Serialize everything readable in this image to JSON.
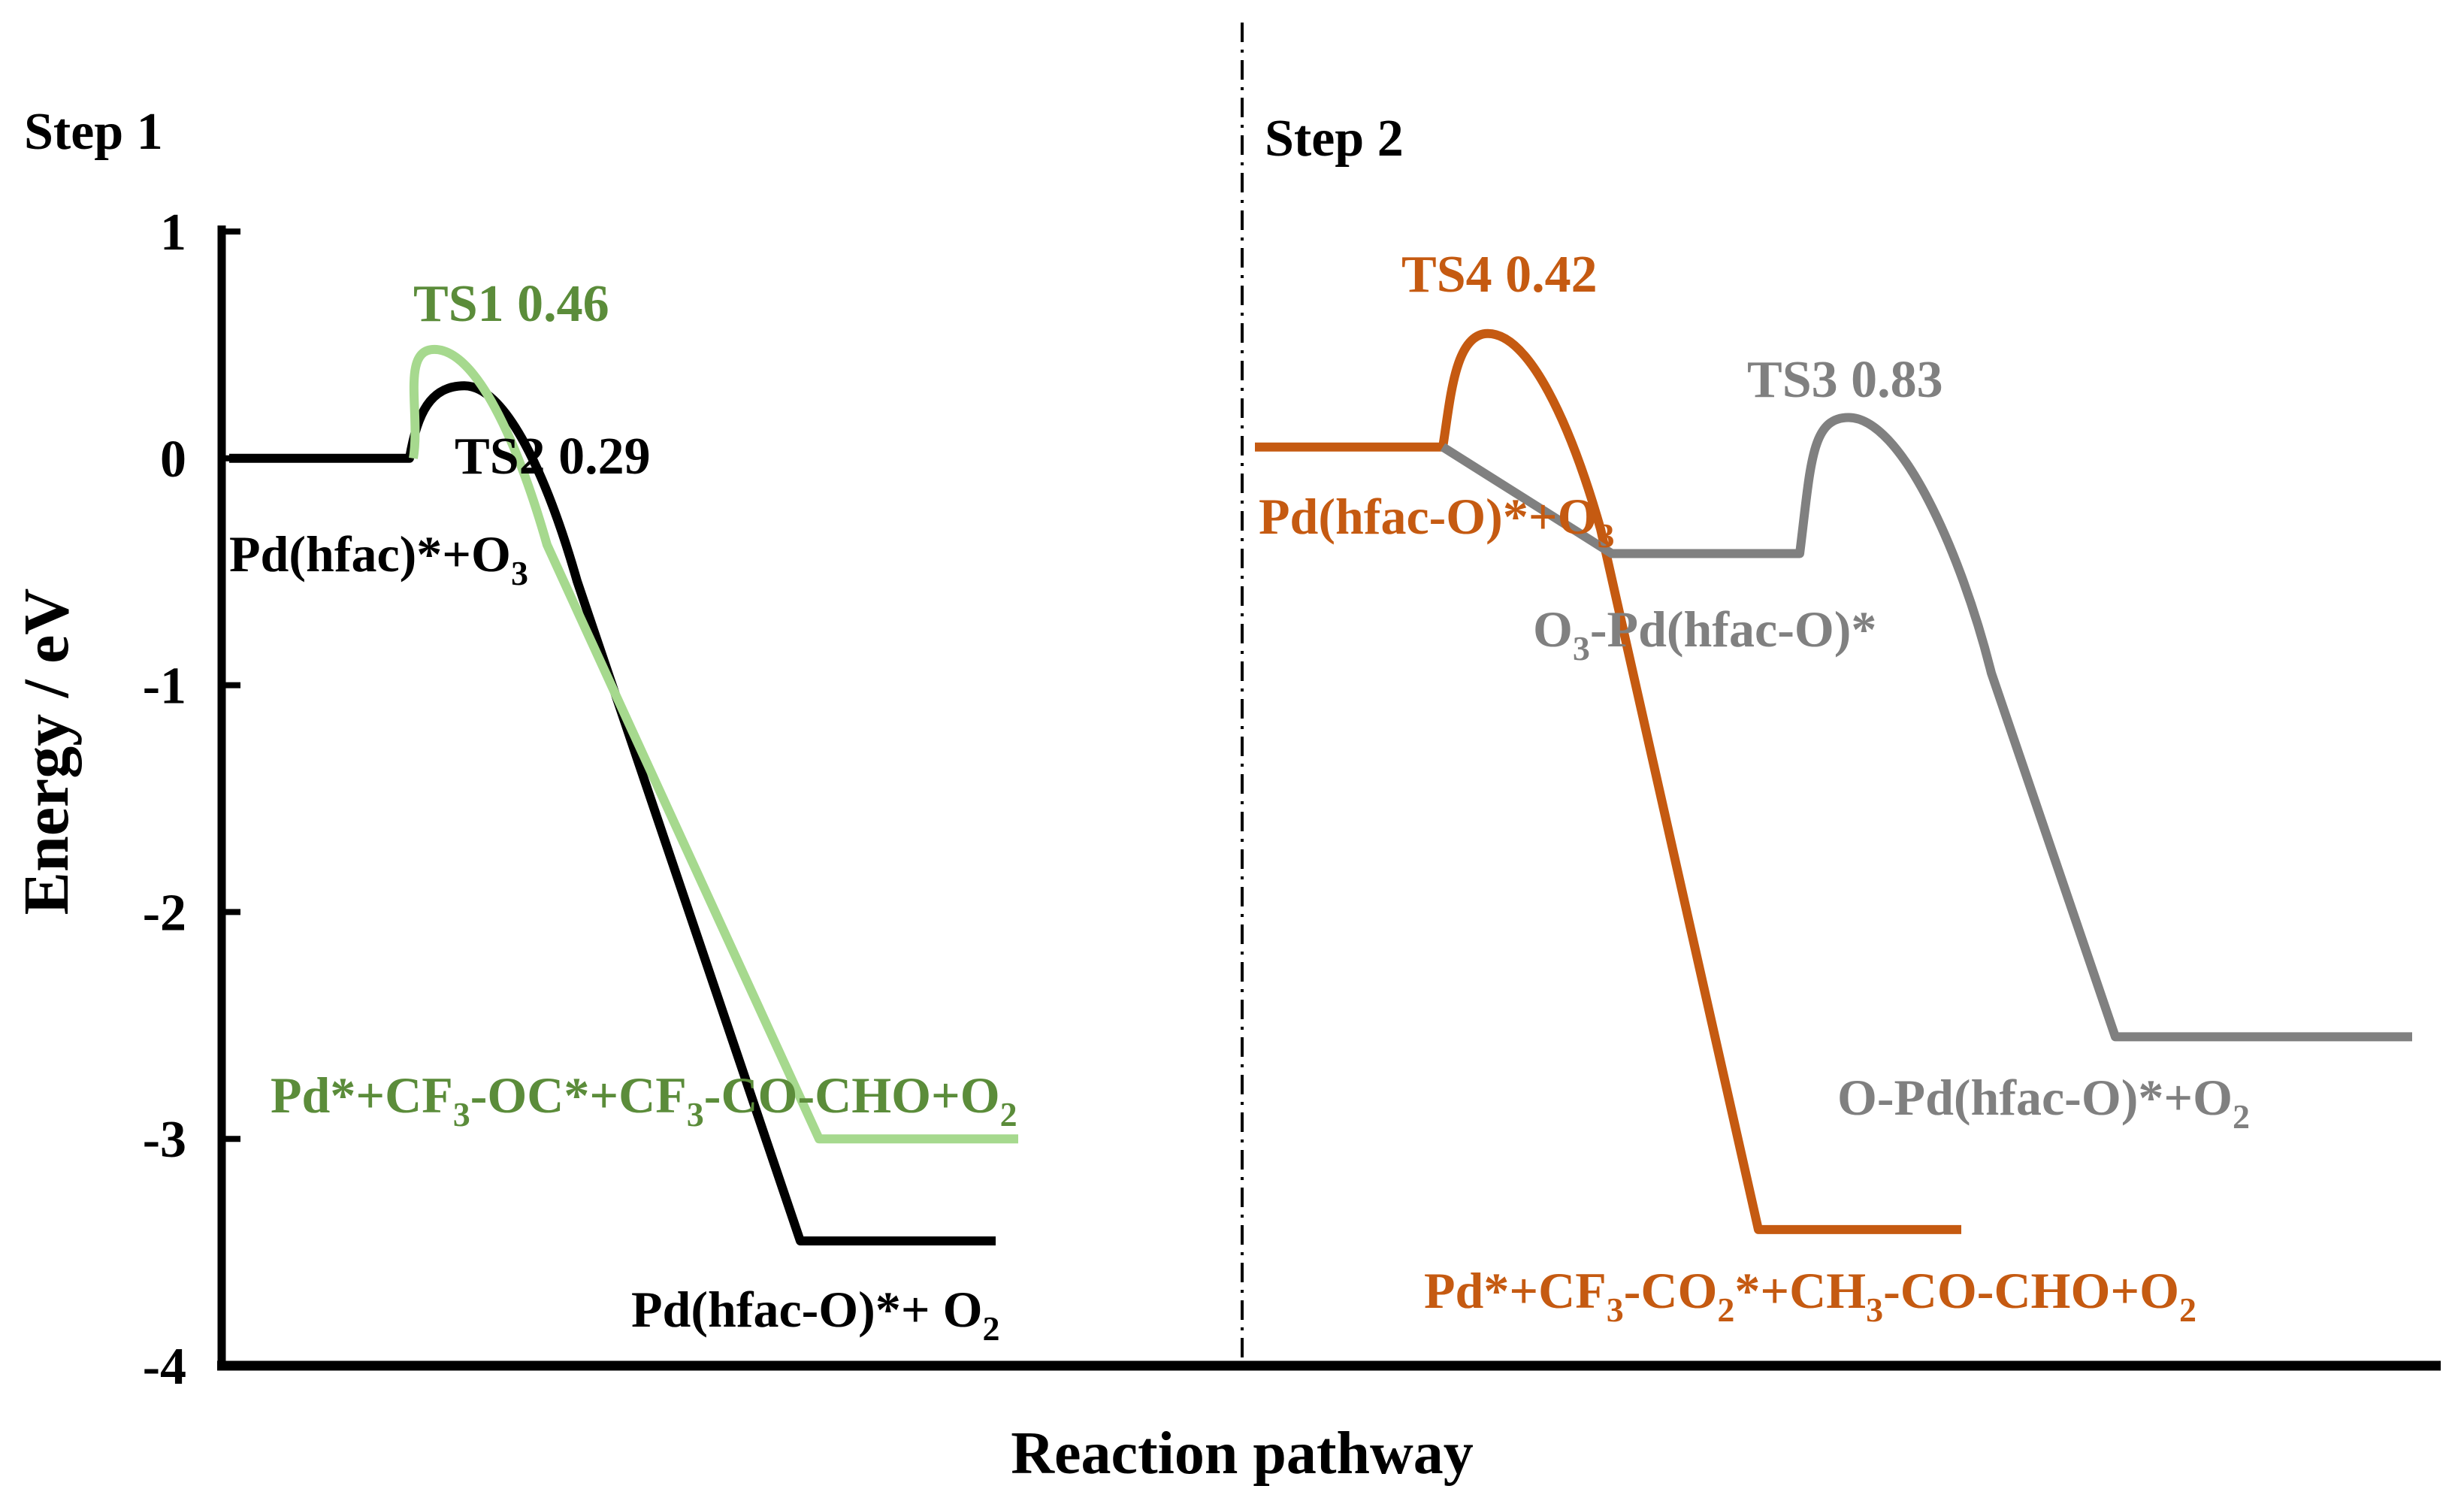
{
  "chart_data": {
    "type": "line",
    "ylabel": "Energy / eV",
    "xlabel": "Reaction pathway",
    "ylim": [
      -4,
      1
    ],
    "yticks": [
      "1",
      "0",
      "-1",
      "-2",
      "-3",
      "-4"
    ],
    "panels": [
      {
        "label": "Step 1"
      },
      {
        "label": "Step 2"
      }
    ],
    "colors": {
      "black": "#000000",
      "green_line": "#a6d98e",
      "green_text": "#5b8c3a",
      "orange": "#c55a11",
      "gray": "#808080"
    },
    "series": [
      {
        "panel": 0,
        "color": "black",
        "levels": [
          {
            "x": 0.05,
            "y": 0.0
          },
          {
            "x": 0.65,
            "y": 0.32
          },
          {
            "x": 1.05,
            "y": -3.45
          }
        ]
      },
      {
        "panel": 0,
        "color": "green_line",
        "levels": [
          {
            "x": 0.1,
            "y": 0.0
          },
          {
            "x": 0.68,
            "y": 0.48
          },
          {
            "x": 1.1,
            "y": -3.0
          }
        ]
      },
      {
        "panel": 1,
        "color": "orange",
        "levels": [
          {
            "x": 0.05,
            "y": 0.05
          },
          {
            "x": 0.6,
            "y": 0.55
          },
          {
            "x": 1.1,
            "y": -3.4
          }
        ]
      },
      {
        "panel": 1,
        "color": "gray",
        "levels": [
          {
            "x": 0.4,
            "y": 0.05
          },
          {
            "x": 0.8,
            "y": -0.42
          },
          {
            "x": 1.2,
            "y": 0.18
          },
          {
            "x": 1.6,
            "y": -2.55
          }
        ]
      }
    ],
    "labels": {
      "ts1": "TS1 0.46",
      "ts2": "TS2 0.29",
      "ts3": "TS3 0.83",
      "ts4": "TS4 0.42",
      "pd_hfac_main": "Pd(hfac)*+O",
      "pd_hfac_sub": "3",
      "s1_green_prod_a": "Pd*+CF",
      "s1_green_prod_sub1": "3",
      "s1_green_prod_b": "-OC*+CF",
      "s1_green_prod_sub2": "3",
      "s1_green_prod_c": "-CO-CHO+O",
      "s1_green_prod_sub3": "2",
      "s1_black_prod_a": "Pd(hfac-O)*+ O",
      "s1_black_prod_sub": "2",
      "s2_start_a": "Pd(hfac-O)*+O",
      "s2_start_sub": "3",
      "s2_int_pre": "O",
      "s2_int_sub": "3",
      "s2_int_rest": "-Pd(hfac-O)*",
      "s2_gray_prod_a": "O-Pd(hfac-O)*+O",
      "s2_gray_prod_sub": "2",
      "s2_orange_prod_a": "Pd*+CF",
      "s2_orange_prod_sub1": "3",
      "s2_orange_prod_b": "-CO",
      "s2_orange_prod_sub2": "2",
      "s2_orange_prod_c": "*+CH",
      "s2_orange_prod_sub3": "3",
      "s2_orange_prod_d": "-CO-CHO+O",
      "s2_orange_prod_sub4": "2"
    }
  }
}
